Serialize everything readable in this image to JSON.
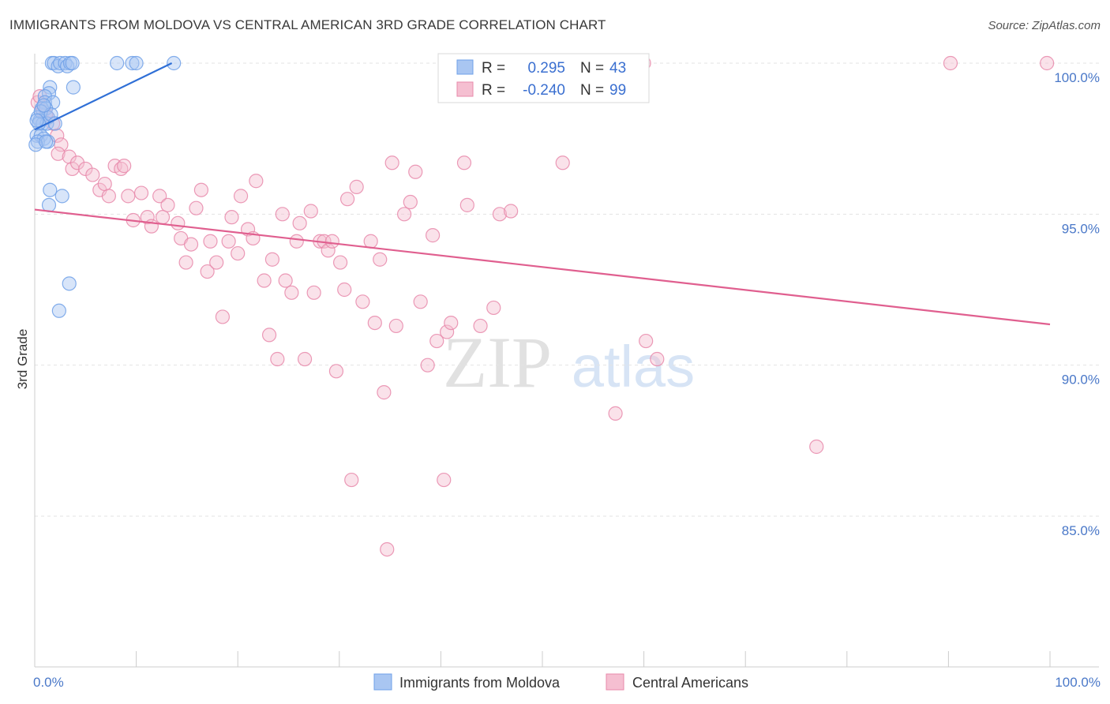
{
  "title": "IMMIGRANTS FROM MOLDOVA VS CENTRAL AMERICAN 3RD GRADE CORRELATION CHART",
  "source": "Source: ZipAtlas.com",
  "watermark": {
    "zip": "ZIP",
    "atlas": "atlas"
  },
  "chart_data": {
    "type": "scatter",
    "xlabel": "",
    "ylabel": "3rd Grade",
    "xlim": [
      0,
      100
    ],
    "ylim": [
      80.5,
      100.7
    ],
    "x_tick_labels": [
      {
        "value": 0,
        "label": "0.0%"
      },
      {
        "value": 100,
        "label": "100.0%"
      }
    ],
    "y_tick_labels": [
      {
        "value": 100,
        "label": "100.0%"
      },
      {
        "value": 95,
        "label": "95.0%"
      },
      {
        "value": 90,
        "label": "90.0%"
      },
      {
        "value": 85,
        "label": "85.0%"
      }
    ],
    "legend": {
      "rows": [
        {
          "r_label": "R =",
          "r_value": "0.295",
          "n_label": "N =",
          "n_value": "43"
        },
        {
          "r_label": "R =",
          "r_value": "-0.240",
          "n_label": "N =",
          "n_value": "99"
        }
      ]
    },
    "series": [
      {
        "name": "Immigrants from Moldova",
        "color": "#6fa0e8",
        "fill": "#a9c6f2",
        "trend_color": "#2f6fd6",
        "trend": {
          "x": [
            0.0,
            13.5
          ],
          "y": [
            97.8,
            100.0
          ]
        },
        "points": [
          [
            1.7,
            100.0
          ],
          [
            1.9,
            100.0
          ],
          [
            2.3,
            99.9
          ],
          [
            2.5,
            100.0
          ],
          [
            3.0,
            100.0
          ],
          [
            3.2,
            99.9
          ],
          [
            3.5,
            100.0
          ],
          [
            3.7,
            100.0
          ],
          [
            8.1,
            100.0
          ],
          [
            9.6,
            100.0
          ],
          [
            10.0,
            100.0
          ],
          [
            13.7,
            100.0
          ],
          [
            1.5,
            99.2
          ],
          [
            3.8,
            99.2
          ],
          [
            1.4,
            99.0
          ],
          [
            1.0,
            98.9
          ],
          [
            1.0,
            98.7
          ],
          [
            1.8,
            98.7
          ],
          [
            0.7,
            98.5
          ],
          [
            1.1,
            98.5
          ],
          [
            0.3,
            98.2
          ],
          [
            1.3,
            98.2
          ],
          [
            0.5,
            98.1
          ],
          [
            0.8,
            98.0
          ],
          [
            1.2,
            98.0
          ],
          [
            0.4,
            98.0
          ],
          [
            0.2,
            97.6
          ],
          [
            0.6,
            97.6
          ],
          [
            0.9,
            97.5
          ],
          [
            0.3,
            97.4
          ],
          [
            1.3,
            97.4
          ],
          [
            0.1,
            97.3
          ],
          [
            1.5,
            95.8
          ],
          [
            2.7,
            95.6
          ],
          [
            1.4,
            95.3
          ],
          [
            3.4,
            92.7
          ],
          [
            2.4,
            91.8
          ],
          [
            0.6,
            98.4
          ],
          [
            1.6,
            98.3
          ],
          [
            2.0,
            98.0
          ],
          [
            1.1,
            97.4
          ],
          [
            0.9,
            98.6
          ],
          [
            0.2,
            98.1
          ]
        ]
      },
      {
        "name": "Central Americans",
        "color": "#e888aa",
        "fill": "#f5bfd1",
        "trend_color": "#e05f8f",
        "trend": {
          "x": [
            0.0,
            100.0
          ],
          "y": [
            95.15,
            91.35
          ]
        },
        "points": [
          [
            0.3,
            98.7
          ],
          [
            0.8,
            98.4
          ],
          [
            1.3,
            98.2
          ],
          [
            1.8,
            98.0
          ],
          [
            2.2,
            97.6
          ],
          [
            2.6,
            97.3
          ],
          [
            2.3,
            97.0
          ],
          [
            3.4,
            96.9
          ],
          [
            3.7,
            96.5
          ],
          [
            4.2,
            96.7
          ],
          [
            5.0,
            96.5
          ],
          [
            5.7,
            96.3
          ],
          [
            6.4,
            95.8
          ],
          [
            6.9,
            96.0
          ],
          [
            7.3,
            95.6
          ],
          [
            7.9,
            96.6
          ],
          [
            8.5,
            96.5
          ],
          [
            8.8,
            96.6
          ],
          [
            9.2,
            95.6
          ],
          [
            10.5,
            95.7
          ],
          [
            9.7,
            94.8
          ],
          [
            11.1,
            94.9
          ],
          [
            11.5,
            94.6
          ],
          [
            12.3,
            95.6
          ],
          [
            12.6,
            94.9
          ],
          [
            13.1,
            95.3
          ],
          [
            14.1,
            94.7
          ],
          [
            14.4,
            94.2
          ],
          [
            14.9,
            93.4
          ],
          [
            15.4,
            94.0
          ],
          [
            15.9,
            95.2
          ],
          [
            16.4,
            95.8
          ],
          [
            17.0,
            93.1
          ],
          [
            17.3,
            94.1
          ],
          [
            17.9,
            93.4
          ],
          [
            18.5,
            91.6
          ],
          [
            19.1,
            94.1
          ],
          [
            19.4,
            94.9
          ],
          [
            20.0,
            93.7
          ],
          [
            20.3,
            95.6
          ],
          [
            21.0,
            94.5
          ],
          [
            21.5,
            94.2
          ],
          [
            21.8,
            96.1
          ],
          [
            22.6,
            92.8
          ],
          [
            23.1,
            91.0
          ],
          [
            23.4,
            93.5
          ],
          [
            23.9,
            90.2
          ],
          [
            24.4,
            95.0
          ],
          [
            24.7,
            92.8
          ],
          [
            25.3,
            92.4
          ],
          [
            25.8,
            94.1
          ],
          [
            26.1,
            94.7
          ],
          [
            26.6,
            90.2
          ],
          [
            27.2,
            95.1
          ],
          [
            27.5,
            92.4
          ],
          [
            28.1,
            94.1
          ],
          [
            28.5,
            94.1
          ],
          [
            28.9,
            93.8
          ],
          [
            29.3,
            94.1
          ],
          [
            29.7,
            89.8
          ],
          [
            30.1,
            93.4
          ],
          [
            30.5,
            92.5
          ],
          [
            30.8,
            95.5
          ],
          [
            31.2,
            86.2
          ],
          [
            31.7,
            95.9
          ],
          [
            32.3,
            92.1
          ],
          [
            33.1,
            94.1
          ],
          [
            33.5,
            91.4
          ],
          [
            34.0,
            93.5
          ],
          [
            34.4,
            89.1
          ],
          [
            34.7,
            83.9
          ],
          [
            35.2,
            96.7
          ],
          [
            35.6,
            91.3
          ],
          [
            36.4,
            95.0
          ],
          [
            37.0,
            95.4
          ],
          [
            37.5,
            96.4
          ],
          [
            38.0,
            92.1
          ],
          [
            38.7,
            90.0
          ],
          [
            39.2,
            94.3
          ],
          [
            39.6,
            90.8
          ],
          [
            40.3,
            86.2
          ],
          [
            40.6,
            91.1
          ],
          [
            41.0,
            91.4
          ],
          [
            42.3,
            96.7
          ],
          [
            42.6,
            95.3
          ],
          [
            43.9,
            91.3
          ],
          [
            45.2,
            91.9
          ],
          [
            45.8,
            95.0
          ],
          [
            46.9,
            95.1
          ],
          [
            52.0,
            96.7
          ],
          [
            57.2,
            88.4
          ],
          [
            60.0,
            100.0
          ],
          [
            60.2,
            90.8
          ],
          [
            61.3,
            90.2
          ],
          [
            77.0,
            87.3
          ],
          [
            90.2,
            100.0
          ],
          [
            99.7,
            100.0
          ],
          [
            0.5,
            98.9
          ],
          [
            1.1,
            98.3
          ]
        ]
      }
    ]
  }
}
